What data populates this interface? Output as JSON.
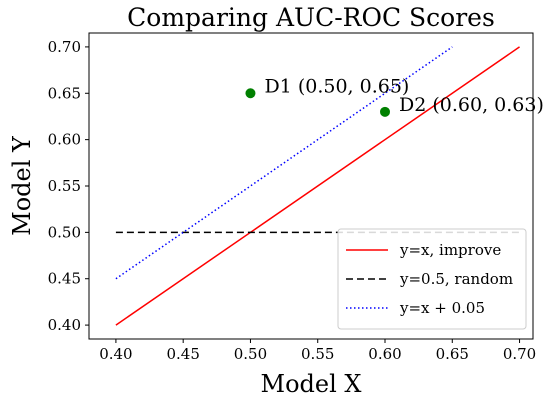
{
  "chart_data": {
    "type": "line",
    "title": "Comparing AUC-ROC Scores",
    "xlabel": "Model X",
    "ylabel": "Model Y",
    "xlim": [
      0.38,
      0.71
    ],
    "ylim": [
      0.385,
      0.715
    ],
    "x_ticks": [
      "0.40",
      "0.45",
      "0.50",
      "0.55",
      "0.60",
      "0.65",
      "0.70"
    ],
    "y_ticks": [
      "0.40",
      "0.45",
      "0.50",
      "0.55",
      "0.60",
      "0.65",
      "0.70"
    ],
    "grid": false,
    "legend_position": "lower-right",
    "series": [
      {
        "name": "y=x, improve",
        "style": "solid",
        "color": "#ff0000",
        "x": [
          0.4,
          0.7
        ],
        "y": [
          0.4,
          0.7
        ]
      },
      {
        "name": "y=0.5, random",
        "style": "dashed",
        "color": "#000000",
        "x": [
          0.4,
          0.7
        ],
        "y": [
          0.5,
          0.5
        ]
      },
      {
        "name": "y=x + 0.05",
        "style": "dotted",
        "color": "#0000ff",
        "x": [
          0.4,
          0.65
        ],
        "y": [
          0.45,
          0.7
        ]
      }
    ],
    "points": [
      {
        "label": "D1 (0.50, 0.65)",
        "x": 0.5,
        "y": 0.65,
        "color": "#008000"
      },
      {
        "label": "D2 (0.60, 0.63)",
        "x": 0.6,
        "y": 0.63,
        "color": "#008000"
      }
    ]
  }
}
